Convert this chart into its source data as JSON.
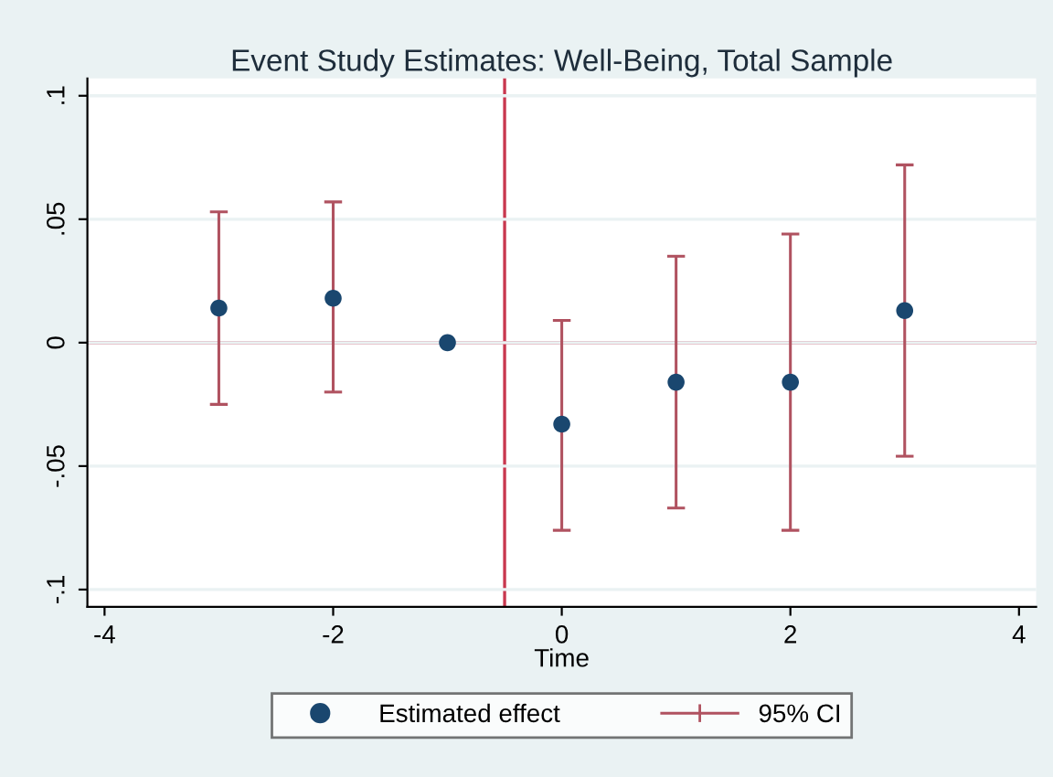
{
  "chart_data": {
    "type": "scatter",
    "title": "Event Study Estimates: Well-Being, Total Sample",
    "xlabel": "Time",
    "x": [
      -3,
      -2,
      -1,
      0,
      1,
      2,
      3
    ],
    "series": [
      {
        "name": "Estimated effect",
        "color": "#1a476f",
        "marker": "circle",
        "values": [
          0.014,
          0.018,
          0,
          -0.033,
          -0.016,
          -0.016,
          0.013
        ],
        "errors": [
          [
            -0.025,
            0.053
          ],
          [
            -0.02,
            0.057
          ],
          null,
          [
            -0.076,
            0.009
          ],
          [
            -0.067,
            0.035
          ],
          [
            -0.076,
            0.044
          ],
          [
            -0.046,
            0.072
          ]
        ]
      }
    ],
    "annotations": [
      "95% CI"
    ],
    "xlim": [
      -4.15,
      4.15
    ],
    "xticks": [
      -4,
      -2,
      0,
      2,
      4
    ],
    "ylim": [
      -0.107,
      0.107
    ],
    "yticks": [
      {
        "value": -0.1,
        "label": "-.1"
      },
      {
        "value": -0.05,
        "label": "-.05"
      },
      0,
      {
        "value": 0.05,
        "label": ".05"
      },
      {
        "value": 0.1,
        "label": ".1"
      }
    ],
    "ref_lines": [
      {
        "axis": "y",
        "value": 0,
        "color": "#c8384f"
      },
      {
        "axis": "x",
        "value": -0.5,
        "color": "#c8384f"
      }
    ],
    "grid": "y",
    "legend": "bottom"
  }
}
